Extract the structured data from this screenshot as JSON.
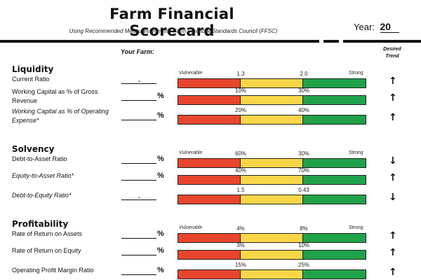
{
  "header": {
    "title": "Farm Financial Scorecard",
    "subtitle": "Using Recommended Measures from the Farm Financial Standards Council (FFSC)",
    "year_label": "Year:",
    "year_value": "20"
  },
  "columns": {
    "your_farm": "Your Farm:",
    "desired_trend_line1": "Desired",
    "desired_trend_line2": "Trend"
  },
  "scale_labels": {
    "vulnerable": "Vulnerable",
    "strong": "Strong"
  },
  "sections": [
    {
      "title": "Liquidity",
      "measures": [
        {
          "label": "Current Ratio",
          "unit": ".",
          "low": "1.3",
          "high": "2.0",
          "trend": "↑"
        },
        {
          "label": "Working Capital as % of Gross Revenue",
          "unit": "%",
          "low": "10%",
          "high": "30%",
          "trend": "↑"
        },
        {
          "label": "Working Capital as % of Operating Expense*",
          "unit": "%",
          "low": "20%",
          "high": "40%",
          "trend": "↑"
        }
      ]
    },
    {
      "title": "Solvency",
      "measures": [
        {
          "label": "Debt-to-Asset Ratio",
          "unit": "%",
          "low": "60%",
          "high": "30%",
          "trend": "↓"
        },
        {
          "label": "Equity-to-Asset Ratio*",
          "unit": "%",
          "low": "40%",
          "high": "70%",
          "trend": "↑"
        },
        {
          "label": "Debt-to-Equity Ratio*",
          "unit": ".",
          "low": "1.5",
          "high": "0.43",
          "trend": "↓"
        }
      ]
    },
    {
      "title": "Profitability",
      "measures": [
        {
          "label": "Rate of Return on Assets",
          "unit": "%",
          "low": "4%",
          "high": "8%",
          "trend": "↑"
        },
        {
          "label": "Rate of Return on Equity",
          "unit": "%",
          "low": "3%",
          "high": "10%",
          "trend": "↑"
        },
        {
          "label": "Operating Profit Margin Ratio",
          "unit": "%",
          "low": "15%",
          "high": "25%",
          "trend": "↑"
        }
      ]
    }
  ],
  "colors": {
    "vulnerable": "#e8452d",
    "caution": "#f8d648",
    "strong": "#1fa24a"
  }
}
